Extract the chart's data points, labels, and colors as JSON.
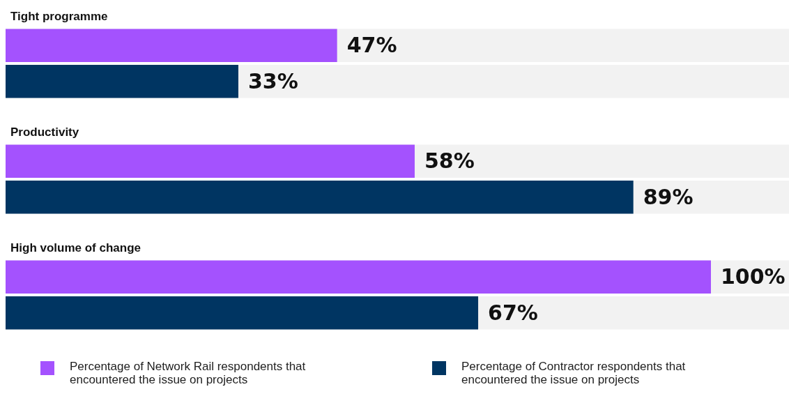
{
  "chart_data": {
    "type": "bar",
    "orientation": "horizontal",
    "categories": [
      "Tight programme",
      "Productivity",
      "High volume of change"
    ],
    "series": [
      {
        "name": "Percentage of Network Rail respondents that encountered the issue on projects",
        "color": "#a452fe",
        "values": [
          47,
          58,
          100
        ],
        "value_labels": [
          "47%",
          "58%",
          "100%"
        ]
      },
      {
        "name": "Percentage of Contractor respondents that encountered the issue on projects",
        "color": "#003562",
        "values": [
          33,
          89,
          67
        ],
        "value_labels": [
          "33%",
          "89%",
          "67%"
        ]
      }
    ],
    "xlim": [
      0,
      100
    ],
    "legend": "bottom"
  }
}
